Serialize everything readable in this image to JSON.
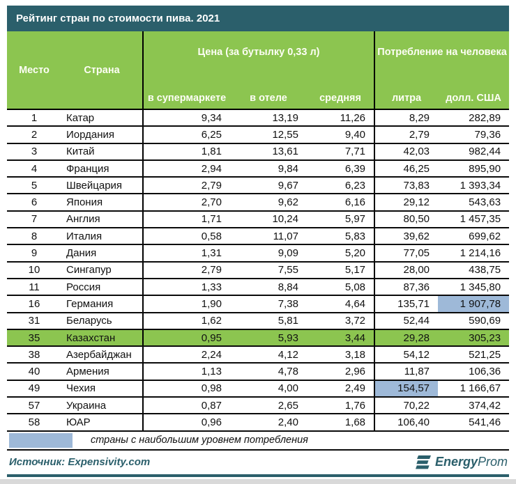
{
  "title": "Рейтинг стран по стоимости пива. 2021",
  "table": {
    "headers": {
      "place": "Место",
      "country": "Страна",
      "price_group": "Цена (за бутылку 0,33 л)",
      "consumption_group": "Потребление на человека",
      "supermarket": "в супермаркете",
      "hotel": "в отеле",
      "average": "средняя",
      "liters": "литра",
      "usd": "долл. США"
    },
    "rows": [
      {
        "place": "1",
        "country": "Катар",
        "supermarket": "9,34",
        "hotel": "13,19",
        "average": "11,26",
        "liters": "8,29",
        "usd": "282,89"
      },
      {
        "place": "2",
        "country": "Иордания",
        "supermarket": "6,25",
        "hotel": "12,55",
        "average": "9,40",
        "liters": "2,79",
        "usd": "79,36"
      },
      {
        "place": "3",
        "country": "Китай",
        "supermarket": "1,81",
        "hotel": "13,61",
        "average": "7,71",
        "liters": "42,03",
        "usd": "982,44"
      },
      {
        "place": "4",
        "country": "Франция",
        "supermarket": "2,94",
        "hotel": "9,84",
        "average": "6,39",
        "liters": "46,25",
        "usd": "895,90"
      },
      {
        "place": "5",
        "country": "Швейцария",
        "supermarket": "2,79",
        "hotel": "9,67",
        "average": "6,23",
        "liters": "73,83",
        "usd": "1 393,34"
      },
      {
        "place": "6",
        "country": "Япония",
        "supermarket": "2,70",
        "hotel": "9,62",
        "average": "6,16",
        "liters": "29,12",
        "usd": "543,63"
      },
      {
        "place": "7",
        "country": "Англия",
        "supermarket": "1,71",
        "hotel": "10,24",
        "average": "5,97",
        "liters": "80,50",
        "usd": "1 457,35"
      },
      {
        "place": "8",
        "country": "Италия",
        "supermarket": "0,58",
        "hotel": "11,07",
        "average": "5,83",
        "liters": "39,62",
        "usd": "699,62"
      },
      {
        "place": "9",
        "country": "Дания",
        "supermarket": "1,31",
        "hotel": "9,09",
        "average": "5,20",
        "liters": "77,05",
        "usd": "1 214,16"
      },
      {
        "place": "10",
        "country": "Сингапур",
        "supermarket": "2,79",
        "hotel": "7,55",
        "average": "5,17",
        "liters": "28,00",
        "usd": "438,75"
      },
      {
        "place": "11",
        "country": "Россия",
        "supermarket": "1,33",
        "hotel": "8,84",
        "average": "5,08",
        "liters": "87,36",
        "usd": "1 345,80"
      },
      {
        "place": "16",
        "country": "Германия",
        "supermarket": "1,90",
        "hotel": "7,38",
        "average": "4,64",
        "liters": "135,71",
        "usd": "1 907,78",
        "usd_highlight": true
      },
      {
        "place": "31",
        "country": "Беларусь",
        "supermarket": "1,62",
        "hotel": "5,81",
        "average": "3,72",
        "liters": "52,44",
        "usd": "590,69"
      },
      {
        "place": "35",
        "country": "Казахстан",
        "supermarket": "0,95",
        "hotel": "5,93",
        "average": "3,44",
        "liters": "29,28",
        "usd": "305,23",
        "row_highlight": true
      },
      {
        "place": "38",
        "country": "Азербайджан",
        "supermarket": "2,24",
        "hotel": "4,12",
        "average": "3,18",
        "liters": "54,12",
        "usd": "521,25"
      },
      {
        "place": "40",
        "country": "Армения",
        "supermarket": "1,13",
        "hotel": "4,78",
        "average": "2,96",
        "liters": "11,87",
        "usd": "106,36"
      },
      {
        "place": "49",
        "country": "Чехия",
        "supermarket": "0,98",
        "hotel": "4,00",
        "average": "2,49",
        "liters": "154,57",
        "usd": "1 166,67",
        "liters_highlight": true
      },
      {
        "place": "57",
        "country": "Украина",
        "supermarket": "0,87",
        "hotel": "2,65",
        "average": "1,76",
        "liters": "70,22",
        "usd": "374,42"
      },
      {
        "place": "58",
        "country": "ЮАР",
        "supermarket": "0,96",
        "hotel": "2,40",
        "average": "1,68",
        "liters": "106,40",
        "usd": "541,46"
      }
    ]
  },
  "legend": {
    "label": "страны с наибольшим уровнем потребления",
    "swatch_color": "#9EB9D8"
  },
  "source": "Источник: Expensivity.com",
  "logo": {
    "bold": "Energy",
    "regular": "Prom"
  },
  "colors": {
    "title_bar": "#2B5F6B",
    "header_green": "#8CC550",
    "highlight_green": "#8CC550",
    "highlight_blue": "#9EB9D8",
    "teal_rule": "#2B5F6B"
  },
  "chart_data": {
    "type": "table",
    "title": "Рейтинг стран по стоимости пива. 2021",
    "columns": [
      "Место",
      "Страна",
      "Цена в супермаркете (за бутылку 0,33 л)",
      "Цена в отеле (за бутылку 0,33 л)",
      "Цена средняя (за бутылку 0,33 л)",
      "Потребление на человека, литра",
      "Потребление на человека, долл. США"
    ],
    "rows": [
      [
        1,
        "Катар",
        9.34,
        13.19,
        11.26,
        8.29,
        282.89
      ],
      [
        2,
        "Иордания",
        6.25,
        12.55,
        9.4,
        2.79,
        79.36
      ],
      [
        3,
        "Китай",
        1.81,
        13.61,
        7.71,
        42.03,
        982.44
      ],
      [
        4,
        "Франция",
        2.94,
        9.84,
        6.39,
        46.25,
        895.9
      ],
      [
        5,
        "Швейцария",
        2.79,
        9.67,
        6.23,
        73.83,
        1393.34
      ],
      [
        6,
        "Япония",
        2.7,
        9.62,
        6.16,
        29.12,
        543.63
      ],
      [
        7,
        "Англия",
        1.71,
        10.24,
        5.97,
        80.5,
        1457.35
      ],
      [
        8,
        "Италия",
        0.58,
        11.07,
        5.83,
        39.62,
        699.62
      ],
      [
        9,
        "Дания",
        1.31,
        9.09,
        5.2,
        77.05,
        1214.16
      ],
      [
        10,
        "Сингапур",
        2.79,
        7.55,
        5.17,
        28.0,
        438.75
      ],
      [
        11,
        "Россия",
        1.33,
        8.84,
        5.08,
        87.36,
        1345.8
      ],
      [
        16,
        "Германия",
        1.9,
        7.38,
        4.64,
        135.71,
        1907.78
      ],
      [
        31,
        "Беларусь",
        1.62,
        5.81,
        3.72,
        52.44,
        590.69
      ],
      [
        35,
        "Казахстан",
        0.95,
        5.93,
        3.44,
        29.28,
        305.23
      ],
      [
        38,
        "Азербайджан",
        2.24,
        4.12,
        3.18,
        54.12,
        521.25
      ],
      [
        40,
        "Армения",
        1.13,
        4.78,
        2.96,
        11.87,
        106.36
      ],
      [
        49,
        "Чехия",
        0.98,
        4.0,
        2.49,
        154.57,
        1166.67
      ],
      [
        57,
        "Украина",
        0.87,
        2.65,
        1.76,
        70.22,
        374.42
      ],
      [
        58,
        "ЮАР",
        0.96,
        2.4,
        1.68,
        106.4,
        541.46
      ]
    ],
    "highlights": {
      "green_row": "Казахстан",
      "blue_cells": [
        {
          "country": "Германия",
          "column": "Потребление на человека, долл. США",
          "value": 1907.78
        },
        {
          "country": "Чехия",
          "column": "Потребление на человека, литра",
          "value": 154.57
        }
      ],
      "blue_meaning": "страны с наибольшим уровнем потребления"
    }
  }
}
